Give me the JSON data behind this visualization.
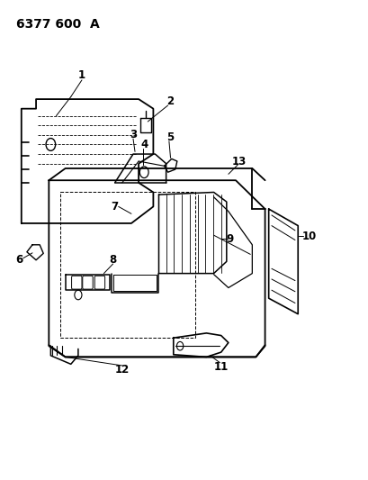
{
  "title": "6377 600  A",
  "background_color": "#ffffff",
  "line_color": "#000000",
  "fig_width": 4.1,
  "fig_height": 5.33,
  "dpi": 100
}
